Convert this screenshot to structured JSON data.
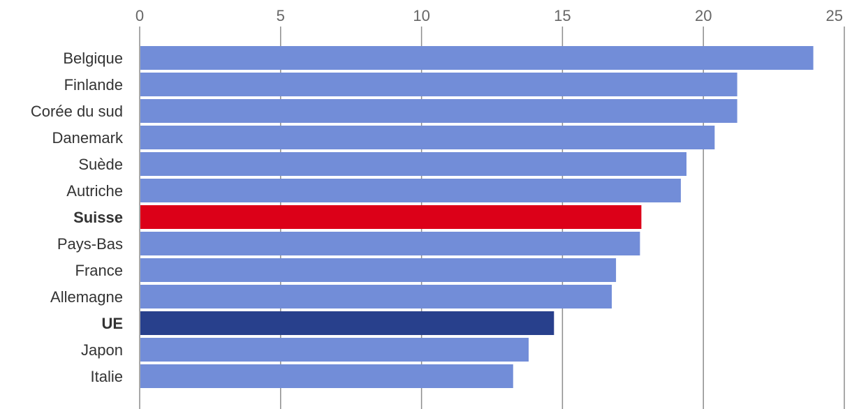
{
  "chart_data": {
    "type": "bar",
    "orientation": "horizontal",
    "categories": [
      "Belgique",
      "Finlande",
      "Corée du sud",
      "Danemark",
      "Suède",
      "Autriche",
      "Suisse",
      "Pays-Bas",
      "France",
      "Allemagne",
      "UE",
      "Japon",
      "Italie"
    ],
    "values": [
      23.9,
      21.2,
      21.2,
      20.4,
      19.4,
      19.2,
      17.8,
      17.75,
      16.9,
      16.75,
      14.7,
      13.8,
      13.25
    ],
    "highlight": {
      "Suisse": "#dc0018",
      "UE": "#28408c"
    },
    "bold_categories": [
      "Suisse",
      "UE"
    ],
    "bar_color": "#728dd8",
    "xlim": [
      0,
      25
    ],
    "xticks": [
      0,
      5,
      10,
      15,
      20,
      25
    ],
    "tick_position": "top",
    "grid": true,
    "title": "",
    "xlabel": "",
    "ylabel": ""
  }
}
